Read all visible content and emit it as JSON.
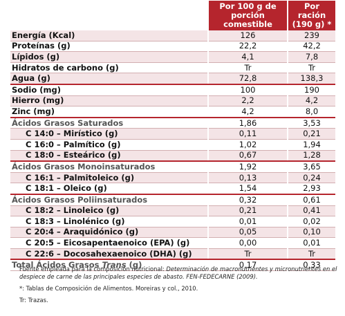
{
  "header": {
    "col1": "Por 100 g de porción comestible",
    "col2": "Por ración (190 g) *"
  },
  "rows": [
    {
      "label": "Energía (Kcal)",
      "v1": "126",
      "v2": "239",
      "style": "b",
      "shade": true
    },
    {
      "label": "Proteínas (g)",
      "v1": "22,2",
      "v2": "42,2",
      "style": "b",
      "shade": false
    },
    {
      "label": "Lípidos (g)",
      "v1": "4,1",
      "v2": "7,8",
      "style": "b",
      "shade": true
    },
    {
      "label": "Hidratos de carbono (g)",
      "v1": "Tr",
      "v2": "Tr",
      "style": "b",
      "shade": false
    },
    {
      "label": "Agua (g)",
      "v1": "72,8",
      "v2": "138,3",
      "style": "b",
      "shade": true
    },
    {
      "label": "Sodio (mg)",
      "v1": "100",
      "v2": "190",
      "style": "b",
      "shade": false
    },
    {
      "label": "Hierro (mg)",
      "v1": "2,2",
      "v2": "4,2",
      "style": "b",
      "shade": true
    },
    {
      "label": "Zinc (mg)",
      "v1": "4,2",
      "v2": "8,0",
      "style": "b",
      "shade": false
    },
    {
      "label": "Ácidos Grasos Saturados",
      "v1": "1,86",
      "v2": "3,53",
      "style": "hdr",
      "shade": false
    },
    {
      "label": "C 14:0 – Mirístico (g)",
      "v1": "0,11",
      "v2": "0,21",
      "style": "sub",
      "shade": true
    },
    {
      "label": "C 16:0 – Palmítico (g)",
      "v1": "1,02",
      "v2": "1,94",
      "style": "sub",
      "shade": false
    },
    {
      "label": "C 18:0 – Esteárico (g)",
      "v1": "0,67",
      "v2": "1,28",
      "style": "sub",
      "shade": true
    },
    {
      "label": "Ácidos Grasos Monoinsaturados",
      "v1": "1,92",
      "v2": "3,65",
      "style": "hdr",
      "shade": false
    },
    {
      "label": "C 16:1 – Palmitoleico (g)",
      "v1": "0,13",
      "v2": "0,24",
      "style": "sub",
      "shade": true
    },
    {
      "label": "C 18:1 – Oleico (g)",
      "v1": "1,54",
      "v2": "2,93",
      "style": "sub",
      "shade": false
    },
    {
      "label": "Ácidos Grasos Poliinsaturados",
      "v1": "0,32",
      "v2": "0,61",
      "style": "hdr",
      "shade": false
    },
    {
      "label": "C 18:2 – Linoleico (g)",
      "v1": "0,21",
      "v2": "0,41",
      "style": "sub",
      "shade": true
    },
    {
      "label": "C 18:3 – Linolénico (g)",
      "v1": "0,01",
      "v2": "0,02",
      "style": "sub",
      "shade": false
    },
    {
      "label": "C 20:4 – Araquidónico (g)",
      "v1": "0,05",
      "v2": "0,10",
      "style": "sub",
      "shade": true
    },
    {
      "label": "C 20:5 – Eicosapentaenoico (EPA) (g)",
      "v1": "0,00",
      "v2": "0,01",
      "style": "sub",
      "shade": false
    },
    {
      "label": "C 22:6 – Docosahexaenoico (DHA) (g)",
      "v1": "Tr",
      "v2": "Tr",
      "style": "sub",
      "shade": true
    },
    {
      "label_pre": "Total Ácidos Grasos ",
      "label_em": "Trans",
      "label_post": " (g)",
      "v1": "0,17",
      "v2": "0,33",
      "style": "hdr",
      "shade": false
    }
  ],
  "sections": {
    "sep_after": [
      4,
      7,
      11,
      14,
      20
    ],
    "top_before": [
      8,
      12,
      15,
      21
    ]
  },
  "notes": {
    "source_pre": "Fuente empleada para la composición nutricional: ",
    "source_em": "Determinación de macronutrientes y micronutrientes en el despiece de carne de las principales especies de abasto. FEN-FEDECARNE (2009).",
    "star": "*: Tablas de Composición de Alimentos. Moreiras y col., 2010.",
    "tr": "Tr: Trazas."
  },
  "colors": {
    "accent": "#b5252d",
    "shade": "#f4e4e6"
  }
}
